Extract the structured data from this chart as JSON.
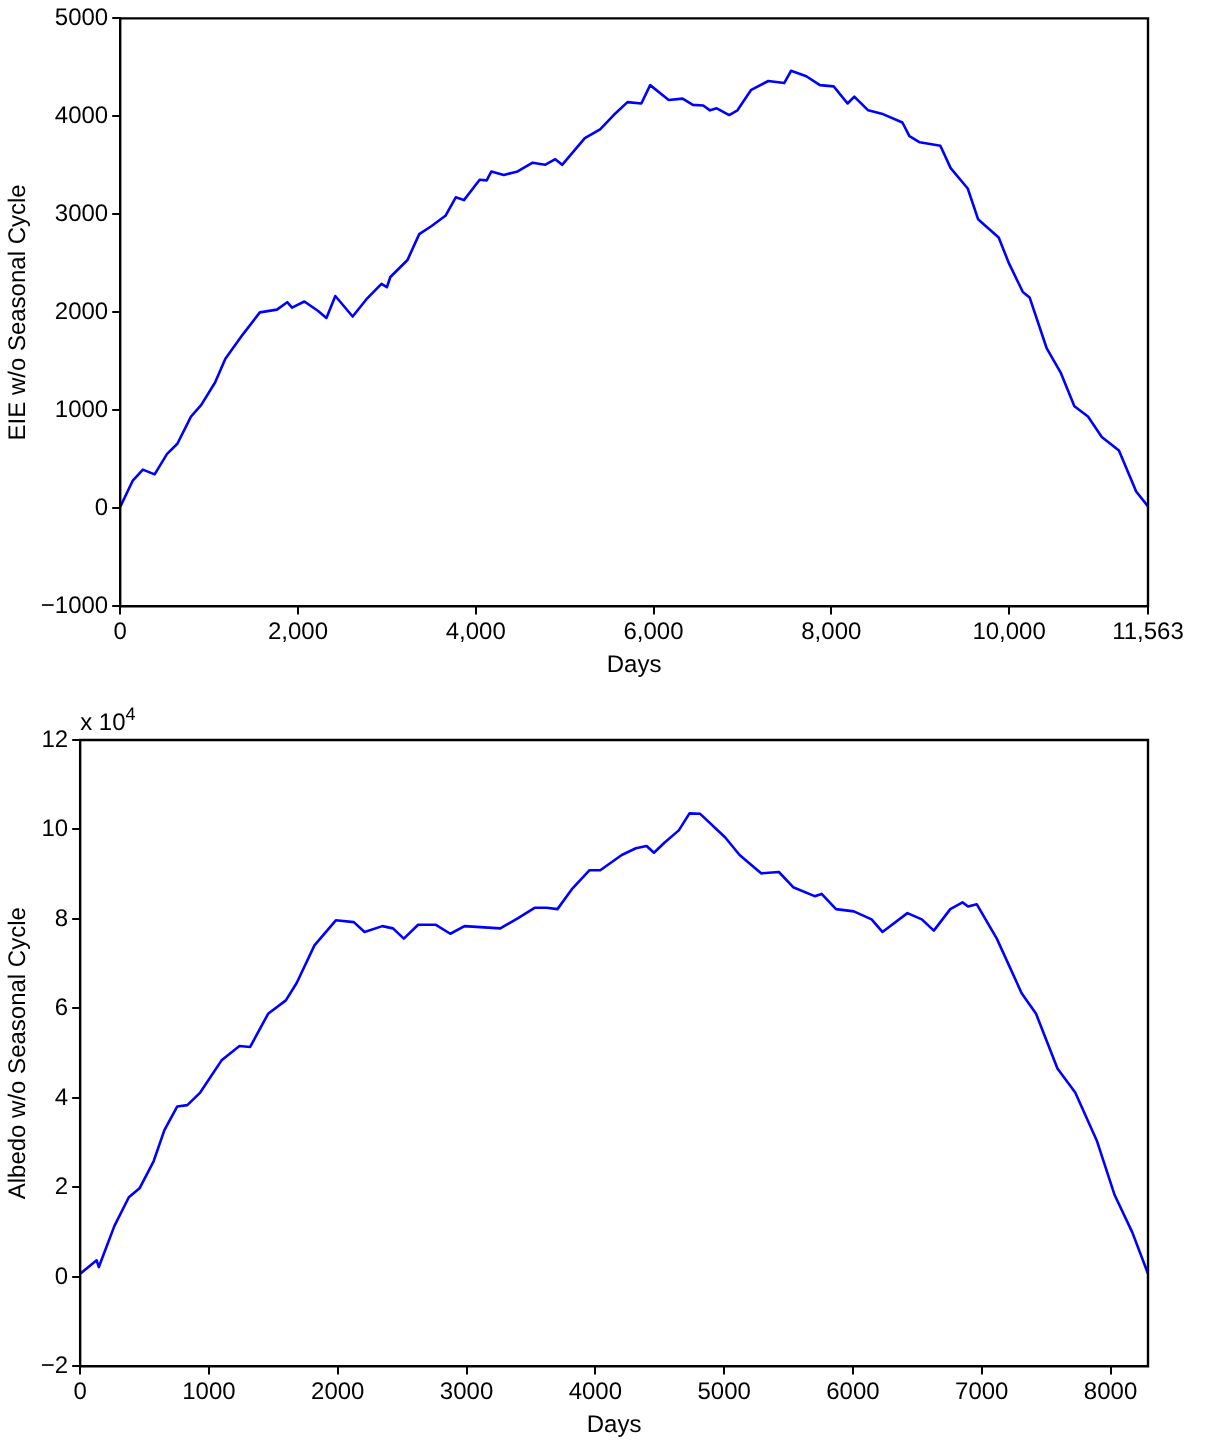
{
  "chart_data": [
    {
      "type": "line",
      "xlabel": "Days",
      "ylabel": "EIE w/o Seasonal Cycle",
      "xlim": [
        0,
        11563
      ],
      "ylim": [
        -1000,
        5000
      ],
      "xticks": [
        0,
        {
          "value": 2000,
          "label": "2,000"
        },
        {
          "value": 4000,
          "label": "4,000"
        },
        {
          "value": 6000,
          "label": "6,000"
        },
        {
          "value": 8000,
          "label": "8,000"
        },
        {
          "value": 10000,
          "label": "10,000"
        },
        {
          "value": 11563,
          "label": "11,563"
        }
      ],
      "yticks": [
        {
          "value": -1000,
          "label": "−1000"
        },
        0,
        1000,
        2000,
        3000,
        4000,
        5000
      ],
      "marker": "none",
      "line_style": "solid",
      "color": "#0000ff",
      "x": [
        0,
        139,
        255,
        387,
        527,
        643,
        796,
        912,
        1067,
        1183,
        1376,
        1571,
        1763,
        1879,
        1933,
        2072,
        2227,
        2320,
        2420,
        2615,
        2768,
        2939,
        3000,
        3039,
        3232,
        3364,
        3503,
        3659,
        3775,
        3867,
        4044,
        4123,
        4176,
        4315,
        4471,
        4640,
        4779,
        4895,
        4972,
        5227,
        5399,
        5552,
        5707,
        5863,
        5962,
        6171,
        6327,
        6443,
        6559,
        6635,
        6712,
        6851,
        6944,
        7099,
        7292,
        7470,
        7547,
        7719,
        7872,
        8027,
        8183,
        8259,
        8415,
        8568,
        8800,
        8879,
        8995,
        9227,
        9343,
        9535,
        9651,
        9883,
        9999,
        10155,
        10231,
        10424,
        10579,
        10735,
        10888,
        11043,
        11236,
        11430,
        11563
      ],
      "values": [
        15,
        280,
        396,
        347,
        556,
        660,
        937,
        1056,
        1285,
        1528,
        1771,
        2000,
        2028,
        2104,
        2049,
        2111,
        2014,
        1944,
        2167,
        1958,
        2132,
        2292,
        2257,
        2361,
        2535,
        2799,
        2882,
        2986,
        3174,
        3146,
        3354,
        3347,
        3438,
        3403,
        3438,
        3528,
        3506,
        3563,
        3506,
        3778,
        3868,
        4014,
        4146,
        4132,
        4319,
        4167,
        4181,
        4118,
        4111,
        4062,
        4083,
        4014,
        4062,
        4271,
        4361,
        4340,
        4465,
        4410,
        4319,
        4306,
        4132,
        4202,
        4062,
        4028,
        3938,
        3799,
        3736,
        3701,
        3472,
        3264,
        2951,
        2764,
        2500,
        2208,
        2153,
        1632,
        1389,
        1042,
        938,
        729,
        590,
        173,
        20
      ]
    },
    {
      "type": "line",
      "xlabel": "Days",
      "ylabel": "Albedo w/o Seasonal Cycle",
      "annotations": [
        "x 10$^{4}$"
      ],
      "xlim": [
        0,
        8291
      ],
      "ylim": [
        -2,
        12
      ],
      "xticks": [
        0,
        1000,
        2000,
        3000,
        4000,
        5000,
        6000,
        7000,
        8000
      ],
      "yticks": [
        {
          "value": -2,
          "label": "−2"
        },
        0,
        2,
        4,
        6,
        8,
        10,
        12
      ],
      "marker": "none",
      "line_style": "solid",
      "color": "#0000ff",
      "x": [
        0,
        128,
        145,
        266,
        378,
        461,
        571,
        654,
        754,
        832,
        932,
        1098,
        1237,
        1320,
        1459,
        1597,
        1681,
        1819,
        1985,
        2125,
        2208,
        2346,
        2429,
        2513,
        2624,
        2762,
        2874,
        2984,
        3262,
        3400,
        3528,
        3622,
        3706,
        3816,
        3955,
        4038,
        4205,
        4315,
        4398,
        4455,
        4538,
        4648,
        4731,
        4814,
        5009,
        5120,
        5287,
        5425,
        5536,
        5703,
        5757,
        5869,
        6007,
        6145,
        6229,
        6423,
        6535,
        6628,
        6756,
        6851,
        6894,
        6961,
        7117,
        7310,
        7422,
        7588,
        7726,
        7893,
        8032,
        8170,
        8291
      ],
      "values": [
        0.07,
        0.37,
        0.22,
        1.14,
        1.78,
        1.98,
        2.59,
        3.28,
        3.81,
        3.84,
        4.12,
        4.84,
        5.16,
        5.14,
        5.88,
        6.18,
        6.57,
        7.41,
        7.97,
        7.93,
        7.71,
        7.84,
        7.79,
        7.56,
        7.87,
        7.87,
        7.67,
        7.84,
        7.79,
        8.02,
        8.25,
        8.25,
        8.22,
        8.66,
        9.09,
        9.09,
        9.43,
        9.58,
        9.63,
        9.48,
        9.71,
        9.98,
        10.36,
        10.35,
        9.82,
        9.43,
        9.02,
        9.05,
        8.71,
        8.51,
        8.56,
        8.22,
        8.17,
        7.99,
        7.71,
        8.13,
        7.99,
        7.74,
        8.22,
        8.37,
        8.28,
        8.33,
        7.56,
        6.34,
        5.88,
        4.66,
        4.12,
        3.05,
        1.83,
        0.99,
        0.07
      ]
    }
  ]
}
